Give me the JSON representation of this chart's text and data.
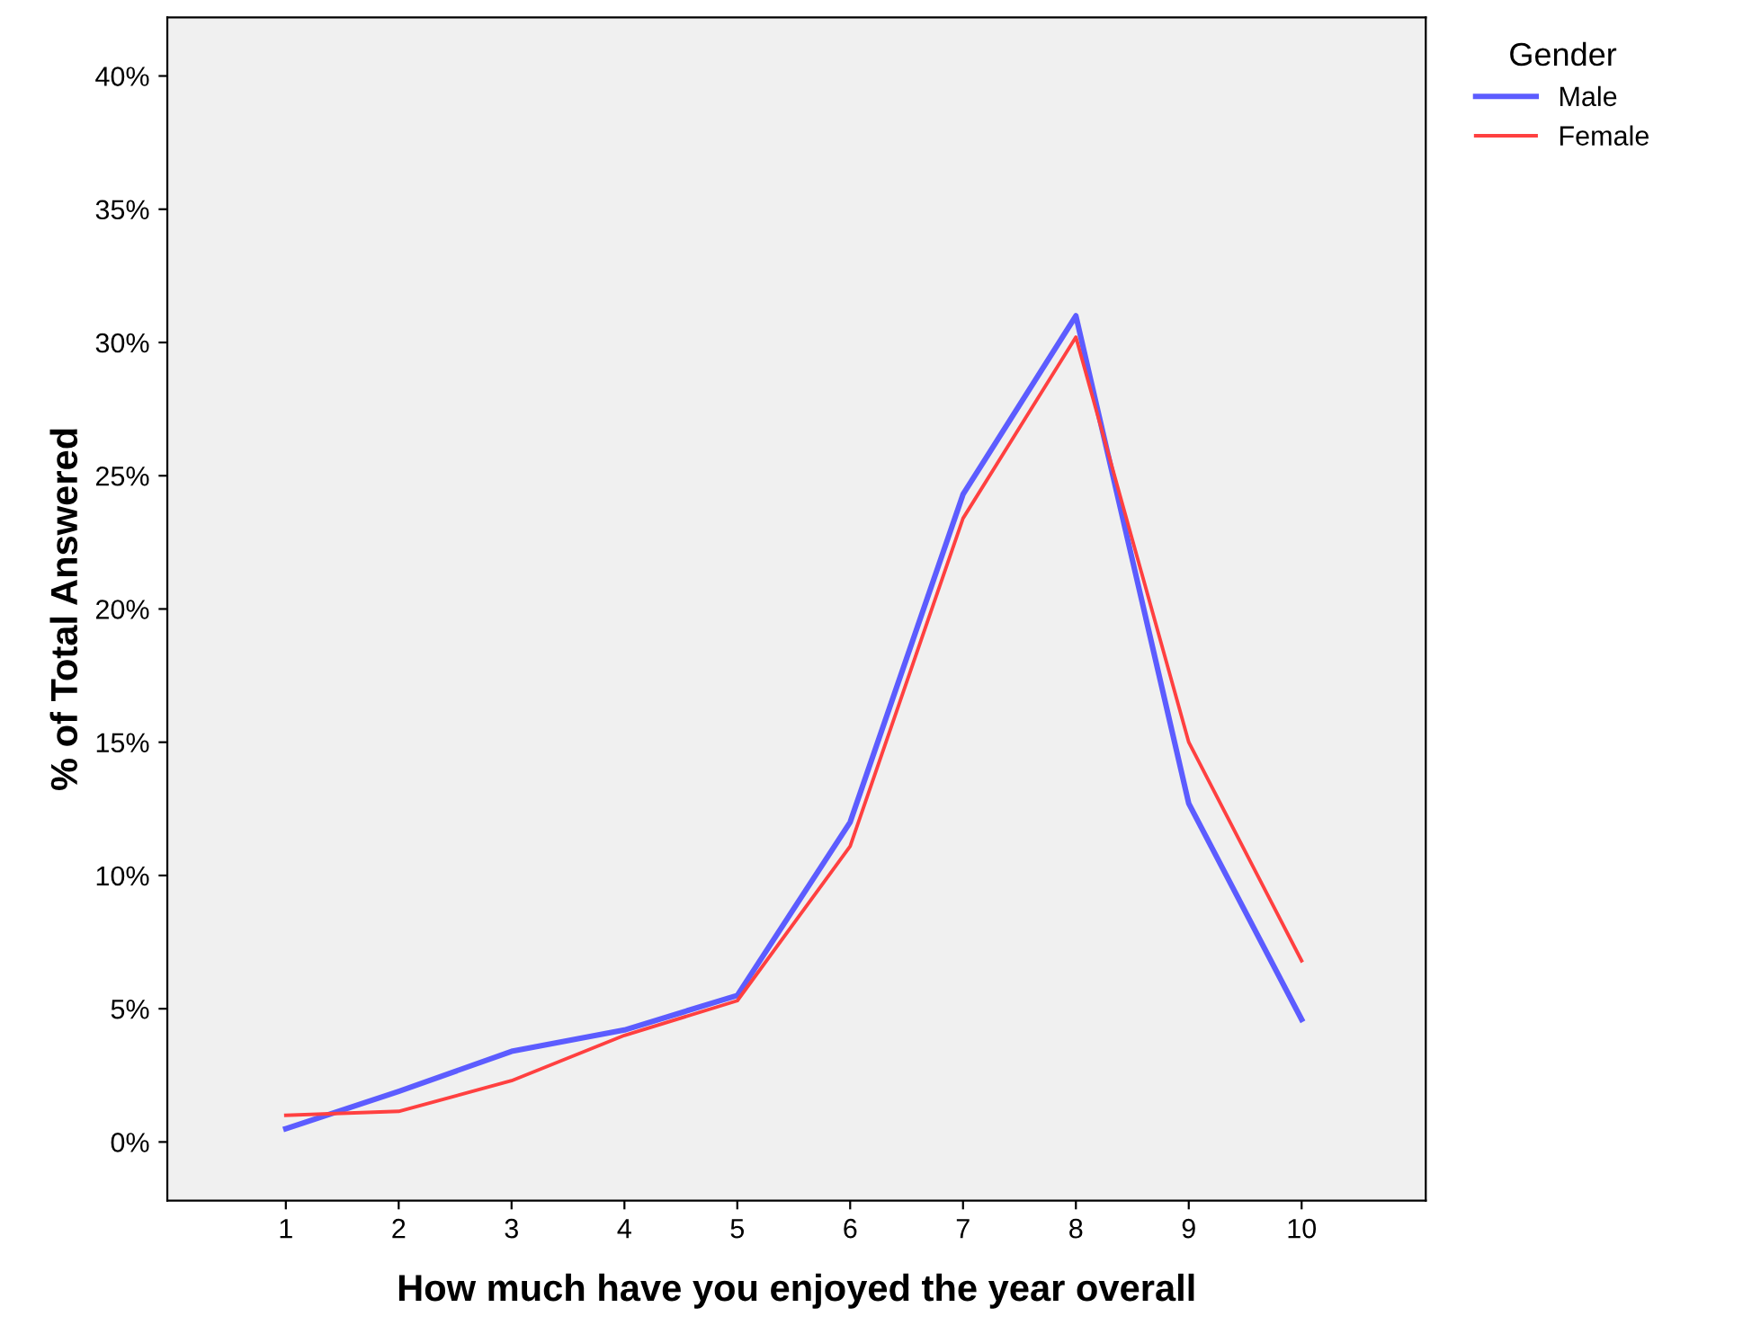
{
  "chart_data": {
    "type": "line",
    "xlabel": "How much have you enjoyed the year overall",
    "ylabel": "% of Total Answered",
    "legend_title": "Gender",
    "x": [
      1,
      2,
      3,
      4,
      5,
      6,
      7,
      8,
      9,
      10
    ],
    "series": [
      {
        "name": "Male",
        "color": "#5c5cff",
        "values": [
          0.5,
          1.9,
          3.4,
          4.2,
          5.5,
          12.0,
          24.3,
          31.0,
          12.7,
          4.6
        ]
      },
      {
        "name": "Female",
        "color": "#ff4040",
        "values": [
          1.0,
          1.15,
          2.3,
          4.0,
          5.3,
          11.1,
          23.4,
          30.2,
          15.0,
          6.8
        ]
      }
    ],
    "xlim": [
      -0.05,
      11.1
    ],
    "xticks": [
      1,
      2,
      3,
      4,
      5,
      6,
      7,
      8,
      9,
      10
    ],
    "ylim": [
      -2.2,
      42.2
    ],
    "yticks": [
      {
        "value": 0,
        "label": "0%"
      },
      {
        "value": 5,
        "label": "5%"
      },
      {
        "value": 10,
        "label": "10%"
      },
      {
        "value": 15,
        "label": "15%"
      },
      {
        "value": 20,
        "label": "20%"
      },
      {
        "value": 25,
        "label": "25%"
      },
      {
        "value": 30,
        "label": "30%"
      },
      {
        "value": 35,
        "label": "35%"
      },
      {
        "value": 40,
        "label": "40%"
      }
    ],
    "grid": false,
    "legend": "top right",
    "marker": "none",
    "line_style": "solid"
  }
}
